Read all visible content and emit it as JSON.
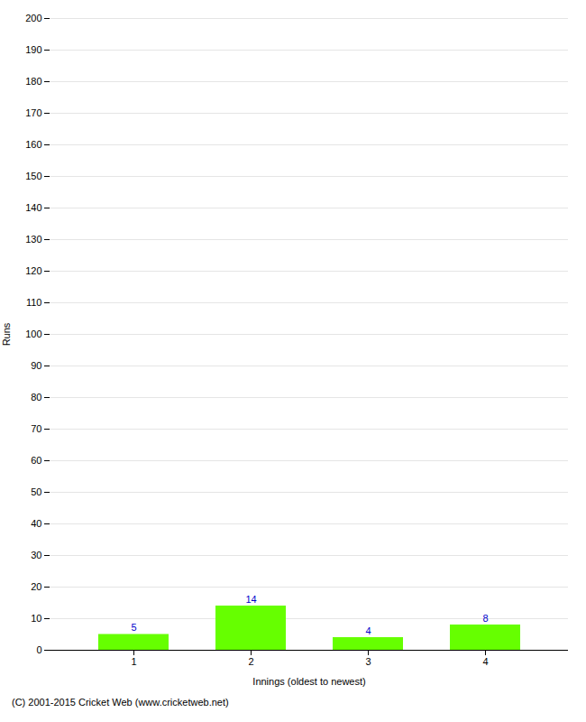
{
  "chart_data": {
    "type": "bar",
    "xlabel": "Innings (oldest to newest)",
    "ylabel": "Runs",
    "categories": [
      1,
      2,
      3,
      4
    ],
    "values": [
      5,
      14,
      4,
      8
    ],
    "color": "#66ff00",
    "ylim": [
      0,
      200
    ],
    "yticks": [
      0,
      10,
      20,
      30,
      40,
      50,
      60,
      70,
      80,
      90,
      100,
      110,
      120,
      130,
      140,
      150,
      160,
      170,
      180,
      190,
      200
    ],
    "grid": true,
    "data_labels": true,
    "footer": "(C) 2001-2015 Cricket Web (www.cricketweb.net)"
  }
}
